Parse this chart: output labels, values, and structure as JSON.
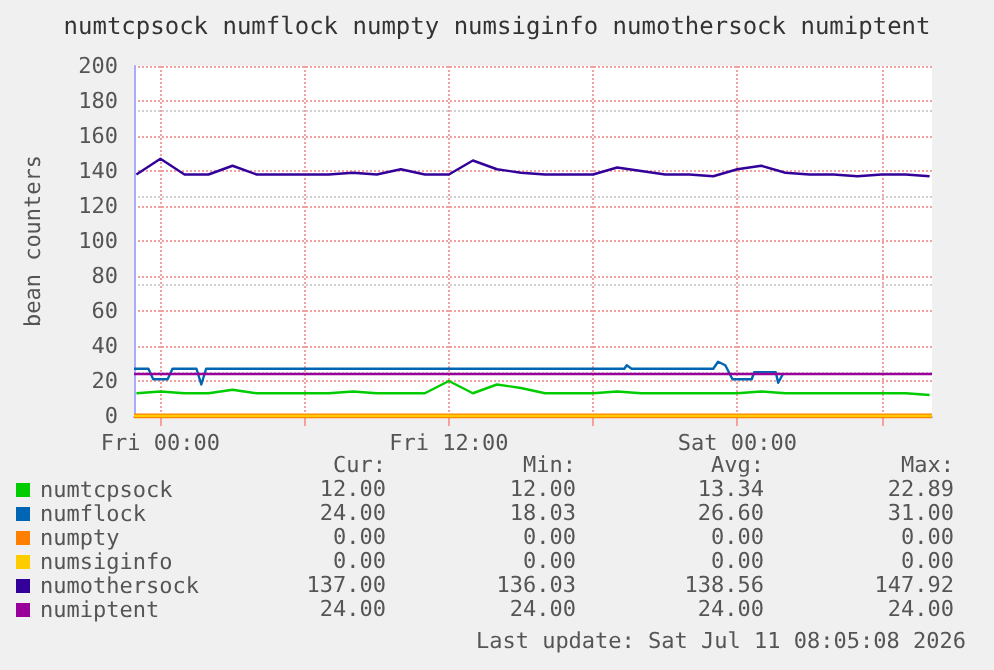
{
  "chart_data": {
    "type": "line",
    "title": "numtcpsock numflock numpty numsiginfo numothersock numiptent",
    "ylabel": "bean counters",
    "xlim": [
      "2026-07-09T22:54",
      "2026-07-11T08:06"
    ],
    "xticks": [
      {
        "value": "2026-07-10T00:00",
        "label": "Fri 00:00"
      },
      {
        "value": "2026-07-10T06:00",
        "label": null
      },
      {
        "value": "2026-07-10T12:00",
        "label": "Fri 12:00"
      },
      {
        "value": "2026-07-10T18:00",
        "label": null
      },
      {
        "value": "2026-07-11T00:00",
        "label": "Sat 00:00"
      },
      {
        "value": "2026-07-11T06:00",
        "label": null
      }
    ],
    "ylim": [
      0,
      200
    ],
    "yticks": [
      0,
      20,
      40,
      60,
      80,
      100,
      120,
      140,
      160,
      180,
      200
    ],
    "grid": true,
    "legend": "bottom",
    "marker": "none",
    "x": [
      "2026-07-09T23:00",
      "2026-07-10T00:00",
      "2026-07-10T01:00",
      "2026-07-10T02:00",
      "2026-07-10T03:00",
      "2026-07-10T04:00",
      "2026-07-10T05:00",
      "2026-07-10T06:00",
      "2026-07-10T07:00",
      "2026-07-10T08:00",
      "2026-07-10T09:00",
      "2026-07-10T10:00",
      "2026-07-10T11:00",
      "2026-07-10T12:00",
      "2026-07-10T13:00",
      "2026-07-10T14:00",
      "2026-07-10T15:00",
      "2026-07-10T16:00",
      "2026-07-10T17:00",
      "2026-07-10T18:00",
      "2026-07-10T19:00",
      "2026-07-10T20:00",
      "2026-07-10T21:00",
      "2026-07-10T22:00",
      "2026-07-10T23:00",
      "2026-07-11T00:00",
      "2026-07-11T01:00",
      "2026-07-11T02:00",
      "2026-07-11T03:00",
      "2026-07-11T04:00",
      "2026-07-11T05:00",
      "2026-07-11T06:00",
      "2026-07-11T07:00",
      "2026-07-11T08:00"
    ],
    "series": [
      {
        "name": "numtcpsock",
        "color": "#00cc00",
        "values": [
          13,
          14,
          13,
          13,
          15,
          13,
          13,
          13,
          13,
          14,
          13,
          13,
          13,
          20,
          13,
          18,
          16,
          13,
          13,
          13,
          14,
          13,
          13,
          13,
          13,
          13,
          14,
          13,
          13,
          13,
          13,
          13,
          13,
          12
        ]
      },
      {
        "name": "numflock",
        "color": "#0066b3",
        "x": [
          "2026-07-09T22:54",
          "2026-07-09T23:30",
          "2026-07-09T23:42",
          "2026-07-10T00:18",
          "2026-07-10T00:30",
          "2026-07-10T01:30",
          "2026-07-10T01:42",
          "2026-07-10T01:54",
          "2026-07-10T19:18",
          "2026-07-10T19:24",
          "2026-07-10T19:36",
          "2026-07-10T23:00",
          "2026-07-10T23:12",
          "2026-07-10T23:30",
          "2026-07-10T23:48",
          "2026-07-11T00:36",
          "2026-07-11T00:42",
          "2026-07-11T01:36",
          "2026-07-11T01:42",
          "2026-07-11T01:54"
        ],
        "values": [
          27,
          27,
          21,
          21,
          27,
          27,
          18,
          27,
          27,
          29,
          27,
          27,
          31,
          29,
          21,
          21,
          25,
          25,
          19,
          24
        ]
      },
      {
        "name": "numpty",
        "color": "#ff8000",
        "x": [
          "2026-07-09T22:54",
          "2026-07-11T08:06"
        ],
        "values": [
          0,
          0
        ]
      },
      {
        "name": "numsiginfo",
        "color": "#ffcc00",
        "x": [
          "2026-07-09T22:54",
          "2026-07-11T08:06"
        ],
        "values": [
          0,
          0
        ]
      },
      {
        "name": "numothersock",
        "color": "#330099",
        "values": [
          138,
          147,
          138,
          138,
          143,
          138,
          138,
          138,
          138,
          139,
          138,
          141,
          138,
          138,
          146,
          141,
          139,
          138,
          138,
          138,
          142,
          140,
          138,
          138,
          137,
          141,
          143,
          139,
          138,
          138,
          137,
          138,
          138,
          137
        ]
      },
      {
        "name": "numiptent",
        "color": "#990099",
        "x": [
          "2026-07-09T22:54",
          "2026-07-11T08:06"
        ],
        "values": [
          24,
          24
        ]
      }
    ],
    "annotations": [
      "Cur:",
      "Min:",
      "Avg:",
      "Max:",
      "12.00",
      "12.00",
      "13.34",
      "22.89",
      "24.00",
      "18.03",
      "26.60",
      "31.00",
      "0.00",
      "0.00",
      "0.00",
      "0.00",
      "0.00",
      "0.00",
      "0.00",
      "0.00",
      "137.00",
      "136.03",
      "138.56",
      "147.92",
      "24.00",
      "24.00",
      "24.00",
      "24.00",
      "Last update: Sat Jul 11 08:05:08 2026"
    ]
  }
}
